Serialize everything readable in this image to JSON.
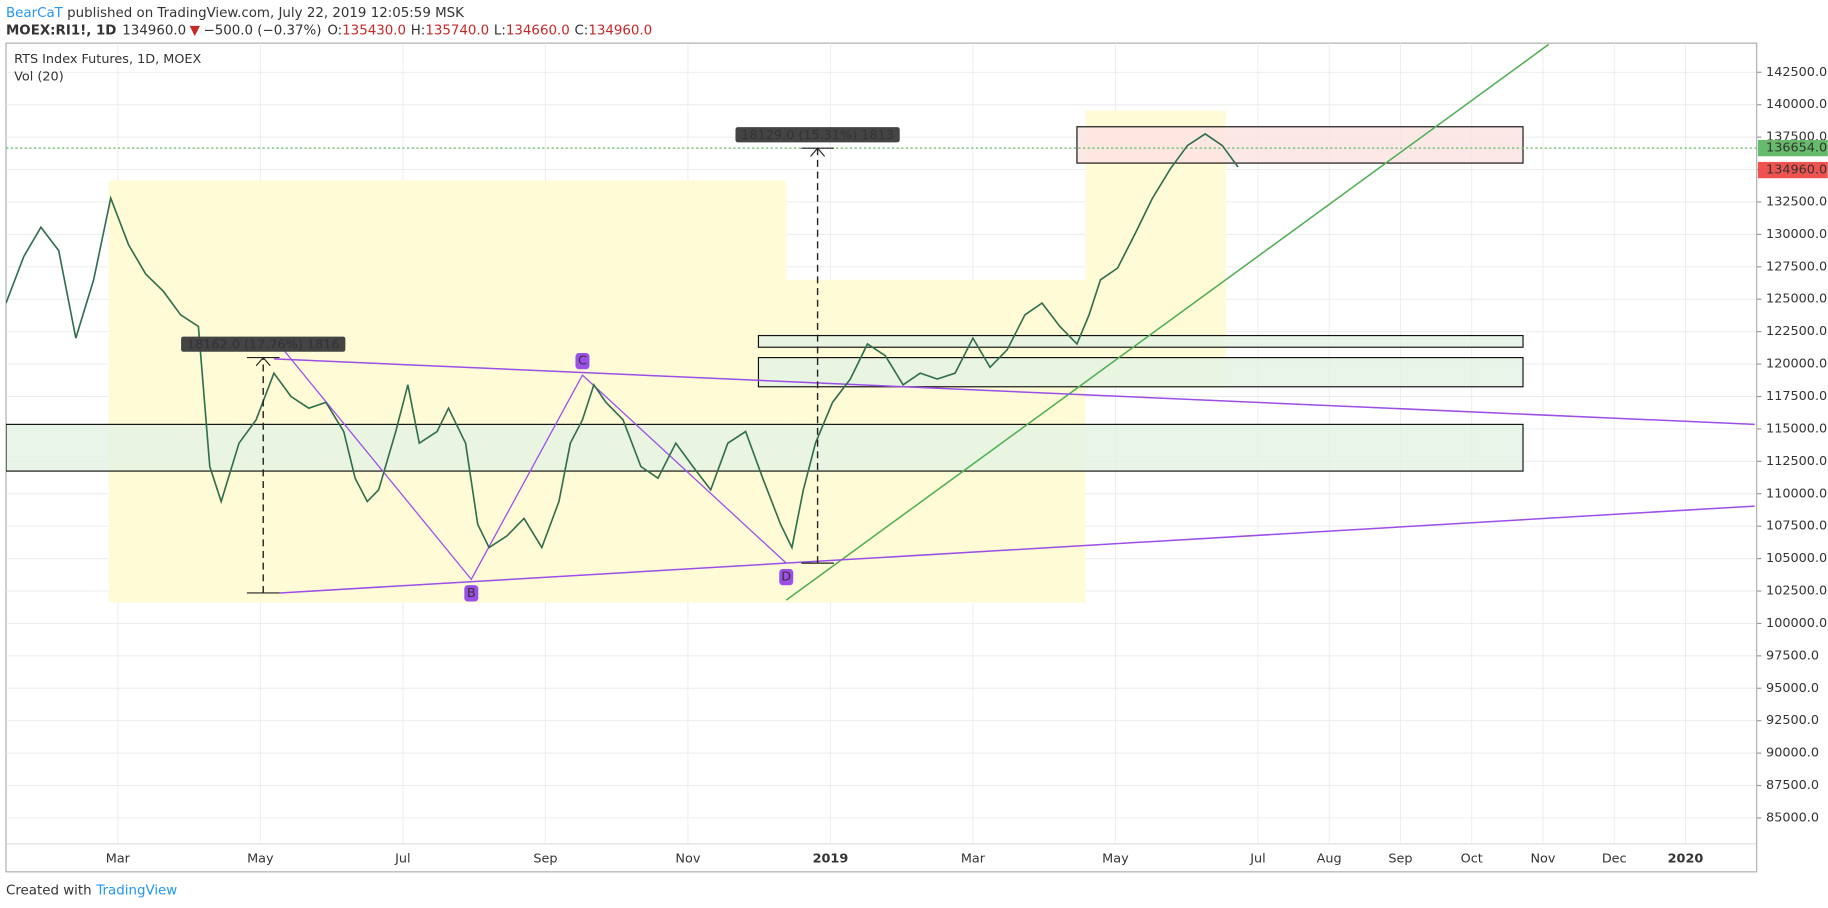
{
  "header": {
    "author": "BearCaT",
    "published": " published on TradingView.com, July 22, 2019 12:05:59 MSK",
    "symbol": "MOEX:RI1!, 1D",
    "last": "134960.0",
    "arrow": "▼",
    "change": "−500.0 (−0.37%)",
    "o": "O:",
    "o_value": "135430.0",
    "h": "H:",
    "h_value": "135740.0",
    "l": "L:",
    "l_value": "134660.0",
    "c": "C:",
    "c_value": "134960.0"
  },
  "footer": {
    "created": "Created with",
    "brand": "TradingView"
  },
  "chart_data": {
    "type": "line",
    "title": "RTS Index Futures, 1D, MOEX",
    "volume_label": "Vol (20)",
    "color": "#2f6f4f",
    "x": [
      0.43,
      0.68,
      0.92,
      1.17,
      1.41,
      1.66,
      1.9,
      2.15,
      2.39,
      2.64,
      2.88,
      3.13,
      3.29,
      3.45,
      3.7,
      3.94,
      4.19,
      4.43,
      4.68,
      4.92,
      5.17,
      5.33,
      5.5,
      5.66,
      5.9,
      6.07,
      6.23,
      6.48,
      6.64,
      6.88,
      7.05,
      7.21,
      7.46,
      7.7,
      7.95,
      8.19,
      8.35,
      8.52,
      8.68,
      8.85,
      9.09,
      9.34,
      9.58,
      9.83,
      10.07,
      10.32,
      10.56,
      10.81,
      11.05,
      11.3,
      11.46,
      11.62,
      11.79,
      12.03,
      12.28,
      12.52,
      12.77,
      13.02,
      13.26,
      13.5,
      13.75,
      14.0,
      14.24,
      14.48,
      14.73,
      14.97,
      15.22,
      15.46,
      15.63,
      15.79,
      16.03,
      16.28,
      16.52,
      16.77,
      17.01,
      17.26,
      17.5,
      17.72
    ],
    "values": [
      124700,
      128300,
      130550,
      128750,
      122000,
      126500,
      132800,
      129200,
      126950,
      125600,
      123800,
      122900,
      112100,
      109400,
      113900,
      115700,
      119300,
      117500,
      116600,
      117050,
      114800,
      111200,
      109400,
      110300,
      114800,
      118400,
      113900,
      114800,
      116600,
      113900,
      107650,
      105850,
      106750,
      108100,
      105850,
      109400,
      113900,
      115700,
      118400,
      117050,
      115700,
      112100,
      111200,
      113900,
      112100,
      110300,
      113900,
      114800,
      111200,
      107650,
      105850,
      110300,
      113900,
      117050,
      118850,
      121550,
      120650,
      118400,
      119300,
      118850,
      119300,
      122000,
      119750,
      121100,
      123800,
      124700,
      122900,
      121550,
      123800,
      126500,
      127400,
      130100,
      132800,
      135050,
      136850,
      137750,
      136850,
      135200
    ],
    "xlim": [
      0.43,
      25
    ],
    "xticks": [
      {
        "value": 2,
        "label": "Mar"
      },
      {
        "value": 4,
        "label": "May"
      },
      {
        "value": 6,
        "label": "Jul"
      },
      {
        "value": 8,
        "label": "Sep"
      },
      {
        "value": 10,
        "label": "Nov"
      },
      {
        "value": 12,
        "label": "2019"
      },
      {
        "value": 14,
        "label": "Mar"
      },
      {
        "value": 16,
        "label": "May"
      },
      {
        "value": 18,
        "label": "Jul"
      },
      {
        "value": 19,
        "label": "Aug"
      },
      {
        "value": 20,
        "label": "Sep"
      },
      {
        "value": 21,
        "label": "Oct"
      },
      {
        "value": 22,
        "label": "Nov"
      },
      {
        "value": 23,
        "label": "Dec"
      },
      {
        "value": 24,
        "label": "2020"
      }
    ],
    "ylim": [
      83000,
      144750
    ],
    "yticks": [
      {
        "value": 85000,
        "label": "85000.0"
      },
      {
        "value": 87500,
        "label": "87500.0"
      },
      {
        "value": 90000,
        "label": "90000.0"
      },
      {
        "value": 92500,
        "label": "92500.0"
      },
      {
        "value": 95000,
        "label": "95000.0"
      },
      {
        "value": 97500,
        "label": "97500.0"
      },
      {
        "value": 100000,
        "label": "100000.0"
      },
      {
        "value": 102500,
        "label": "102500.0"
      },
      {
        "value": 105000,
        "label": "105000.0"
      },
      {
        "value": 107500,
        "label": "107500.0"
      },
      {
        "value": 110000,
        "label": "110000.0"
      },
      {
        "value": 112500,
        "label": "112500.0"
      },
      {
        "value": 115000,
        "label": "115000.0"
      },
      {
        "value": 117500,
        "label": "117500.0"
      },
      {
        "value": 120000,
        "label": "120000.0"
      },
      {
        "value": 122500,
        "label": "122500.0"
      },
      {
        "value": 125000,
        "label": "125000.0"
      },
      {
        "value": 127500,
        "label": "127500.0"
      },
      {
        "value": 130000,
        "label": "130000.0"
      },
      {
        "value": 132500,
        "label": "132500.0"
      },
      {
        "value": 135000,
        "label": "135000.0"
      },
      {
        "value": 137500,
        "label": "137500.0"
      },
      {
        "value": 140000,
        "label": "140000.0"
      },
      {
        "value": 142500,
        "label": "142500.0"
      }
    ],
    "grid": true,
    "last_price": {
      "value": 134960,
      "label": "134960.0",
      "color": "#ef5350"
    },
    "level": {
      "value": 136654,
      "label": "136654.0",
      "color": "#66bb6a"
    },
    "ranges": [
      {
        "x": [
          1.87,
          11.38
        ],
        "y": [
          101600,
          134150
        ],
        "color": "#fffbd6"
      },
      {
        "x": [
          11.38,
          15.58
        ],
        "y": [
          101600,
          126500
        ],
        "color": "#fffbd6"
      },
      {
        "x": [
          15.58,
          17.55
        ],
        "y": [
          118150,
          139550
        ],
        "color": "#fffbd6"
      }
    ],
    "zones": [
      {
        "x": [
          0.43,
          21.72
        ],
        "y": [
          111750,
          115350
        ],
        "color": "#e3f2e3"
      },
      {
        "x": [
          10.99,
          21.72
        ],
        "y": [
          121300,
          122200
        ],
        "color": "#e3f2e3"
      },
      {
        "x": [
          10.99,
          21.72
        ],
        "y": [
          118250,
          120500
        ],
        "color": "#e3f2e3"
      },
      {
        "x": [
          15.46,
          21.72
        ],
        "y": [
          135500,
          138300
        ],
        "color": "#fde2e2"
      }
    ],
    "trendlines": [
      {
        "x": [
          11.38,
          22.08
        ],
        "y": [
          101800,
          144650
        ],
        "color": "#4caf50"
      },
      {
        "x": [
          4.19,
          24.97
        ],
        "y": [
          120400,
          115350
        ],
        "color": "#9c4fe8"
      },
      {
        "x": [
          4.27,
          24.97
        ],
        "y": [
          102350,
          109050
        ],
        "color": "#9c4fe8"
      }
    ],
    "pattern": {
      "x": [
        4.19,
        6.96,
        8.52,
        11.38
      ],
      "y": [
        122000,
        103400,
        119150,
        104650
      ],
      "labels": [
        null,
        "B",
        "C",
        "D"
      ],
      "color": "#9c4fe8"
    },
    "measures": [
      {
        "label": "18162.0 (17.76%) 1816",
        "x": 4.04,
        "y": [
          102350,
          120500
        ]
      },
      {
        "label": "18129.0 (15.31%) 1813",
        "x": 11.82,
        "y": [
          104650,
          136650
        ]
      }
    ]
  }
}
